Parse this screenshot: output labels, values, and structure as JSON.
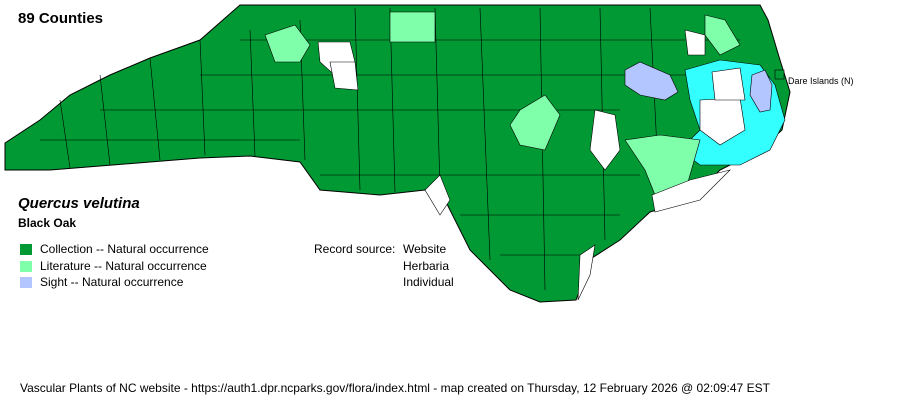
{
  "county_count": "89 Counties",
  "species": {
    "scientific_name": "Quercus velutina",
    "common_name": "Black Oak"
  },
  "legend": [
    {
      "label": "Collection -- Natural occurrence",
      "color": "#009933"
    },
    {
      "label": "Literature -- Natural occurrence",
      "color": "#80ffaa"
    },
    {
      "label": "Sight -- Natural occurrence",
      "color": "#b3c6ff"
    }
  ],
  "record_source": {
    "label": "Record source:",
    "values": [
      "Website",
      "Herbaria",
      "Individual"
    ]
  },
  "island_label": "Dare Islands (N)",
  "colors": {
    "collection": "#009933",
    "literature": "#80ffaa",
    "sight": "#b3c6ff",
    "water": "#33ffff",
    "none": "#ffffff"
  },
  "footer": "Vascular Plants of NC website - https://auth1.dpr.ncparks.gov/flora/index.html - map created on Thursday, 12 February 2026 @ 02:09:47 EST"
}
